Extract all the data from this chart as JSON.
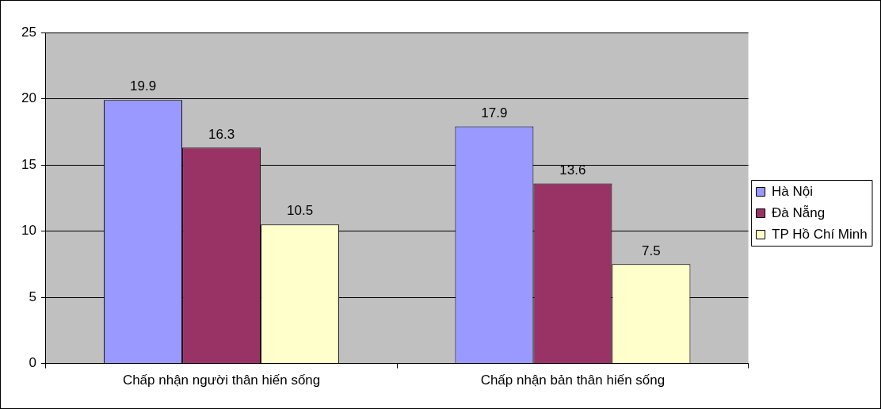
{
  "chart_data": {
    "type": "bar",
    "categories": [
      "Chấp nhận người thân hiến sống",
      "Chấp nhận bản thân hiến sống"
    ],
    "series": [
      {
        "name": "Hà Nội",
        "color": "#9999ff",
        "values": [
          19.9,
          17.9
        ]
      },
      {
        "name": "Đà Nẵng",
        "color": "#993366",
        "values": [
          16.3,
          13.6
        ]
      },
      {
        "name": "TP Hồ Chí Minh",
        "color": "#ffffcc",
        "values": [
          10.5,
          7.5
        ]
      }
    ],
    "ylim": [
      0,
      25
    ],
    "yticks": [
      0,
      5,
      10,
      15,
      20,
      25
    ],
    "grid": "y",
    "legend": "right",
    "data_labels": true
  }
}
